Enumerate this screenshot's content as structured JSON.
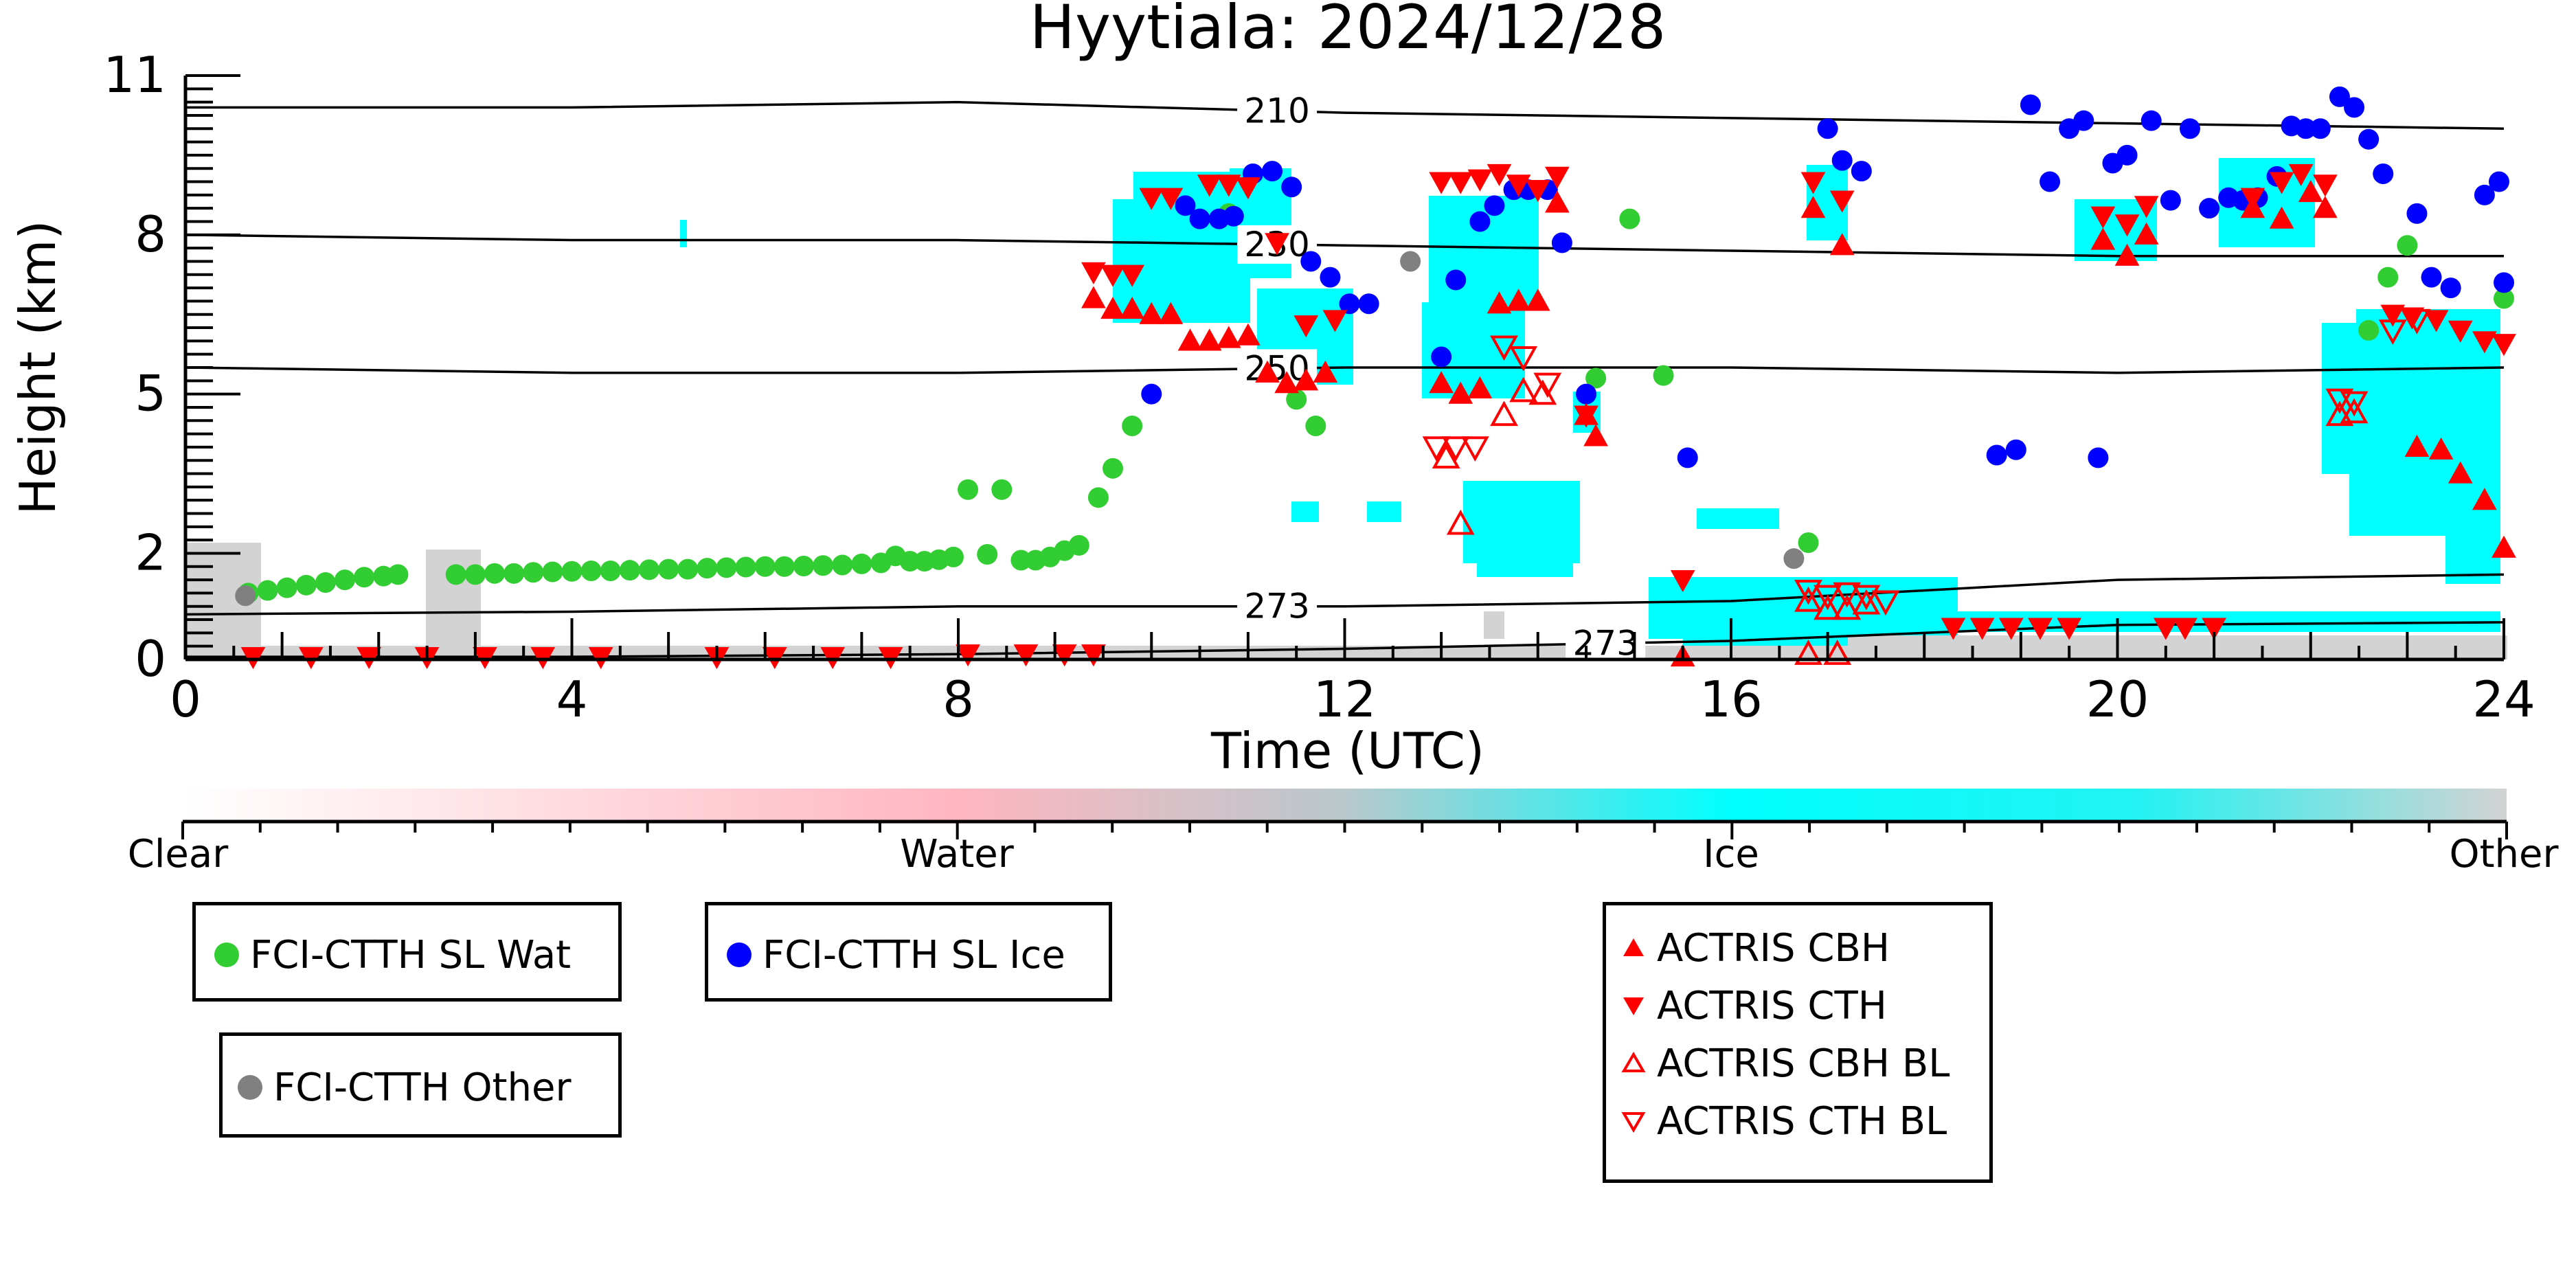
{
  "chart_data": {
    "type": "scatter",
    "title": "Hyytiala: 2024/12/28",
    "xlabel": "Time (UTC)",
    "ylabel": "Height (km)",
    "xlim": [
      0,
      24
    ],
    "ylim": [
      0,
      11
    ],
    "x_ticks": [
      0,
      4,
      8,
      12,
      16,
      20,
      24
    ],
    "y_ticks": [
      0,
      2,
      5,
      8,
      11
    ],
    "grid": false,
    "colorbar": {
      "labels": [
        "Clear",
        "Water",
        "Ice",
        "Other"
      ],
      "colors": [
        "#ffffff",
        "#ffb6c1",
        "#00ffff",
        "#d3d3d3"
      ]
    },
    "isotherms": [
      {
        "label": "210",
        "y": [
          10.4,
          10.4,
          10.5,
          10.3,
          10.2,
          10.1,
          10.0
        ]
      },
      {
        "label": "230",
        "y": [
          8.0,
          7.9,
          7.9,
          7.8,
          7.7,
          7.6,
          7.6
        ]
      },
      {
        "label": "250",
        "y": [
          5.5,
          5.4,
          5.4,
          5.5,
          5.5,
          5.4,
          5.5
        ]
      },
      {
        "label": "273",
        "y": [
          0.85,
          0.9,
          1.0,
          1.0,
          1.1,
          1.5,
          1.6
        ]
      },
      {
        "label": "273",
        "y": [
          0.05,
          0.05,
          0.1,
          0.2,
          0.35,
          0.65,
          0.7
        ]
      }
    ],
    "series": [
      {
        "name": "FCI-CTTH SL Wat",
        "color": "#32cd32",
        "marker": "circle",
        "points": [
          [
            0.65,
            1.25
          ],
          [
            0.85,
            1.3
          ],
          [
            1.05,
            1.35
          ],
          [
            1.25,
            1.4
          ],
          [
            1.45,
            1.45
          ],
          [
            1.65,
            1.5
          ],
          [
            1.85,
            1.55
          ],
          [
            2.05,
            1.57
          ],
          [
            2.2,
            1.6
          ],
          [
            2.8,
            1.6
          ],
          [
            3.0,
            1.6
          ],
          [
            3.2,
            1.62
          ],
          [
            3.4,
            1.62
          ],
          [
            3.6,
            1.64
          ],
          [
            3.8,
            1.65
          ],
          [
            4.0,
            1.66
          ],
          [
            4.2,
            1.67
          ],
          [
            4.4,
            1.67
          ],
          [
            4.6,
            1.68
          ],
          [
            4.8,
            1.69
          ],
          [
            5.0,
            1.7
          ],
          [
            5.2,
            1.7
          ],
          [
            5.4,
            1.72
          ],
          [
            5.6,
            1.73
          ],
          [
            5.8,
            1.74
          ],
          [
            6.0,
            1.75
          ],
          [
            6.2,
            1.75
          ],
          [
            6.4,
            1.76
          ],
          [
            6.6,
            1.77
          ],
          [
            6.8,
            1.78
          ],
          [
            7.0,
            1.8
          ],
          [
            7.2,
            1.82
          ],
          [
            7.35,
            1.95
          ],
          [
            7.5,
            1.85
          ],
          [
            7.65,
            1.85
          ],
          [
            7.8,
            1.88
          ],
          [
            7.95,
            1.93
          ],
          [
            8.1,
            3.2
          ],
          [
            8.3,
            1.98
          ],
          [
            8.45,
            3.2
          ],
          [
            8.65,
            1.87
          ],
          [
            8.8,
            1.87
          ],
          [
            8.95,
            1.93
          ],
          [
            9.1,
            2.05
          ],
          [
            9.25,
            2.15
          ],
          [
            9.45,
            3.05
          ],
          [
            9.6,
            3.6
          ],
          [
            9.8,
            4.4
          ],
          [
            10.8,
            8.4
          ],
          [
            11.5,
            4.9
          ],
          [
            11.7,
            4.4
          ],
          [
            14.6,
            5.3
          ],
          [
            14.95,
            8.3
          ],
          [
            15.3,
            5.35
          ],
          [
            16.8,
            2.2
          ],
          [
            22.6,
            6.2
          ],
          [
            22.8,
            7.2
          ],
          [
            23.0,
            7.8
          ],
          [
            24.0,
            6.8
          ]
        ]
      },
      {
        "name": "FCI-CTTH SL Ice",
        "color": "#0000ff",
        "marker": "circle",
        "points": [
          [
            10.0,
            5.0
          ],
          [
            10.35,
            8.55
          ],
          [
            10.5,
            8.3
          ],
          [
            10.7,
            8.3
          ],
          [
            10.85,
            8.35
          ],
          [
            11.05,
            9.15
          ],
          [
            11.25,
            9.2
          ],
          [
            11.45,
            8.9
          ],
          [
            11.65,
            7.5
          ],
          [
            11.85,
            7.2
          ],
          [
            12.05,
            6.7
          ],
          [
            12.25,
            6.7
          ],
          [
            13.0,
            5.7
          ],
          [
            13.15,
            7.15
          ],
          [
            13.4,
            8.25
          ],
          [
            13.55,
            8.55
          ],
          [
            13.75,
            8.85
          ],
          [
            13.9,
            8.85
          ],
          [
            14.1,
            8.85
          ],
          [
            14.25,
            7.85
          ],
          [
            14.5,
            5.0
          ],
          [
            15.55,
            3.8
          ],
          [
            17.0,
            10.0
          ],
          [
            17.15,
            9.4
          ],
          [
            17.35,
            9.2
          ],
          [
            18.75,
            3.85
          ],
          [
            18.95,
            3.95
          ],
          [
            19.1,
            10.45
          ],
          [
            19.3,
            9.0
          ],
          [
            19.5,
            10.0
          ],
          [
            19.65,
            10.15
          ],
          [
            19.8,
            3.8
          ],
          [
            19.95,
            9.35
          ],
          [
            20.1,
            9.5
          ],
          [
            20.35,
            10.15
          ],
          [
            20.55,
            8.65
          ],
          [
            20.75,
            10.0
          ],
          [
            20.95,
            8.5
          ],
          [
            21.15,
            8.7
          ],
          [
            21.3,
            8.65
          ],
          [
            21.45,
            8.7
          ],
          [
            21.65,
            9.1
          ],
          [
            21.8,
            10.05
          ],
          [
            21.95,
            10.0
          ],
          [
            22.1,
            10.0
          ],
          [
            22.3,
            10.6
          ],
          [
            22.45,
            10.4
          ],
          [
            22.6,
            9.8
          ],
          [
            22.75,
            9.15
          ],
          [
            23.1,
            8.4
          ],
          [
            23.25,
            7.2
          ],
          [
            23.45,
            7.0
          ],
          [
            23.8,
            8.75
          ],
          [
            23.95,
            9.0
          ],
          [
            24.0,
            7.1
          ]
        ]
      },
      {
        "name": "FCI-CTTH Other",
        "color": "#808080",
        "marker": "circle",
        "points": [
          [
            0.62,
            1.2
          ],
          [
            12.68,
            7.5
          ],
          [
            16.65,
            1.9
          ]
        ]
      },
      {
        "name": "ACTRIS CBH",
        "color": "#ff0000",
        "marker": "triangle-up",
        "points": [
          [
            9.4,
            6.8
          ],
          [
            9.6,
            6.6
          ],
          [
            9.8,
            6.6
          ],
          [
            10.0,
            6.5
          ],
          [
            10.2,
            6.5
          ],
          [
            10.4,
            6.0
          ],
          [
            10.6,
            6.0
          ],
          [
            10.8,
            6.05
          ],
          [
            11.0,
            6.1
          ],
          [
            11.2,
            5.4
          ],
          [
            11.4,
            5.2
          ],
          [
            11.6,
            5.25
          ],
          [
            11.8,
            5.4
          ],
          [
            13.0,
            5.2
          ],
          [
            13.2,
            5.0
          ],
          [
            13.4,
            5.1
          ],
          [
            13.6,
            6.7
          ],
          [
            13.8,
            6.75
          ],
          [
            14.0,
            6.75
          ],
          [
            14.2,
            8.6
          ],
          [
            14.5,
            4.6
          ],
          [
            14.6,
            4.2
          ],
          [
            15.5,
            0.05
          ],
          [
            16.85,
            8.5
          ],
          [
            17.15,
            7.8
          ],
          [
            19.85,
            7.9
          ],
          [
            20.1,
            7.6
          ],
          [
            20.3,
            8.0
          ],
          [
            21.4,
            8.5
          ],
          [
            21.7,
            8.3
          ],
          [
            22.0,
            8.8
          ],
          [
            22.15,
            8.5
          ],
          [
            23.1,
            4.0
          ],
          [
            23.35,
            3.95
          ],
          [
            23.55,
            3.5
          ],
          [
            23.8,
            3.0
          ],
          [
            24.0,
            2.1
          ]
        ]
      },
      {
        "name": "ACTRIS CTH",
        "color": "#ff0000",
        "marker": "triangle-down",
        "points": [
          [
            9.4,
            7.3
          ],
          [
            9.6,
            7.25
          ],
          [
            9.8,
            7.25
          ],
          [
            10.0,
            8.7
          ],
          [
            10.2,
            8.7
          ],
          [
            10.6,
            8.95
          ],
          [
            10.8,
            8.95
          ],
          [
            11.0,
            8.9
          ],
          [
            11.3,
            7.85
          ],
          [
            11.6,
            6.3
          ],
          [
            11.9,
            6.4
          ],
          [
            13.0,
            9.0
          ],
          [
            13.2,
            9.0
          ],
          [
            13.4,
            9.05
          ],
          [
            13.6,
            9.15
          ],
          [
            13.8,
            8.95
          ],
          [
            14.0,
            8.85
          ],
          [
            14.2,
            9.1
          ],
          [
            14.5,
            4.6
          ],
          [
            15.5,
            1.5
          ],
          [
            16.85,
            9.0
          ],
          [
            17.15,
            8.65
          ],
          [
            19.85,
            8.35
          ],
          [
            20.1,
            8.2
          ],
          [
            20.3,
            8.55
          ],
          [
            21.4,
            8.7
          ],
          [
            21.7,
            9.0
          ],
          [
            21.9,
            9.15
          ],
          [
            22.15,
            8.95
          ],
          [
            22.85,
            6.5
          ],
          [
            23.05,
            6.45
          ],
          [
            23.3,
            6.4
          ],
          [
            23.55,
            6.2
          ],
          [
            23.8,
            6.0
          ],
          [
            24.0,
            5.95
          ],
          [
            18.3,
            0.6
          ],
          [
            18.6,
            0.6
          ],
          [
            18.9,
            0.6
          ],
          [
            19.2,
            0.6
          ],
          [
            19.5,
            0.6
          ],
          [
            20.5,
            0.6
          ],
          [
            20.7,
            0.6
          ],
          [
            21.0,
            0.6
          ],
          [
            0.7,
            0.05
          ],
          [
            1.3,
            0.05
          ],
          [
            1.9,
            0.05
          ],
          [
            2.5,
            0.05
          ],
          [
            3.1,
            0.05
          ],
          [
            3.7,
            0.05
          ],
          [
            4.3,
            0.05
          ],
          [
            5.5,
            0.05
          ],
          [
            6.1,
            0.05
          ],
          [
            6.7,
            0.05
          ],
          [
            7.3,
            0.05
          ],
          [
            8.1,
            0.1
          ],
          [
            8.7,
            0.1
          ],
          [
            9.1,
            0.1
          ],
          [
            9.4,
            0.1
          ]
        ]
      },
      {
        "name": "ACTRIS CBH BL",
        "color": "#ff0000",
        "marker": "triangle-up-open",
        "points": [
          [
            13.05,
            3.8
          ],
          [
            13.2,
            2.55
          ],
          [
            13.65,
            4.6
          ],
          [
            13.85,
            5.05
          ],
          [
            14.05,
            5.0
          ],
          [
            22.3,
            4.6
          ],
          [
            22.45,
            4.65
          ],
          [
            16.8,
            1.1
          ],
          [
            17.0,
            0.95
          ],
          [
            17.2,
            0.95
          ],
          [
            17.4,
            1.05
          ],
          [
            16.8,
            0.1
          ],
          [
            17.1,
            0.1
          ]
        ]
      },
      {
        "name": "ACTRIS CTH BL",
        "color": "#ff0000",
        "marker": "triangle-down-open",
        "points": [
          [
            12.95,
            4.0
          ],
          [
            13.15,
            4.0
          ],
          [
            13.35,
            4.0
          ],
          [
            13.65,
            5.9
          ],
          [
            13.85,
            5.7
          ],
          [
            14.1,
            5.2
          ],
          [
            22.3,
            4.9
          ],
          [
            22.45,
            4.85
          ],
          [
            22.85,
            6.2
          ],
          [
            23.1,
            6.4
          ],
          [
            16.8,
            1.3
          ],
          [
            17.0,
            1.2
          ],
          [
            17.2,
            1.25
          ],
          [
            17.4,
            1.2
          ],
          [
            17.6,
            1.1
          ]
        ]
      }
    ]
  }
}
